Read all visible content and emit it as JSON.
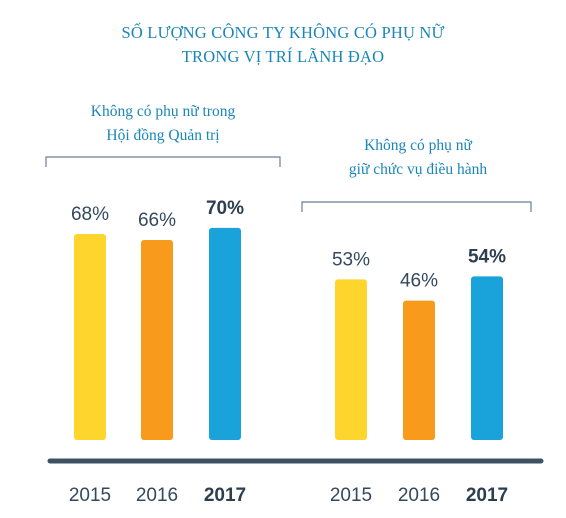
{
  "chart_data": {
    "type": "bar",
    "title_lines": [
      "SỐ LƯỢNG CÔNG TY KHÔNG CÓ PHỤ NỮ",
      "TRONG VỊ TRÍ LÃNH ĐẠO"
    ],
    "categories": [
      "2015",
      "2016",
      "2017"
    ],
    "groups": [
      {
        "label_lines": [
          "Không có phụ nữ trong",
          "Hội đồng Quản trị"
        ],
        "values": [
          68,
          66,
          70
        ],
        "value_labels": [
          "68%",
          "66%",
          "70%"
        ]
      },
      {
        "label_lines": [
          "Không có phụ nữ",
          "giữ chức vụ điều hành"
        ],
        "values": [
          53,
          46,
          54
        ],
        "value_labels": [
          "53%",
          "46%",
          "54%"
        ]
      }
    ],
    "bar_colors": [
      "#fdd52c",
      "#f89a1c",
      "#1aa2da"
    ],
    "highlight_category": "2017",
    "unit": "%",
    "legend": "none",
    "grid": false,
    "ylim": [
      0,
      100
    ]
  }
}
